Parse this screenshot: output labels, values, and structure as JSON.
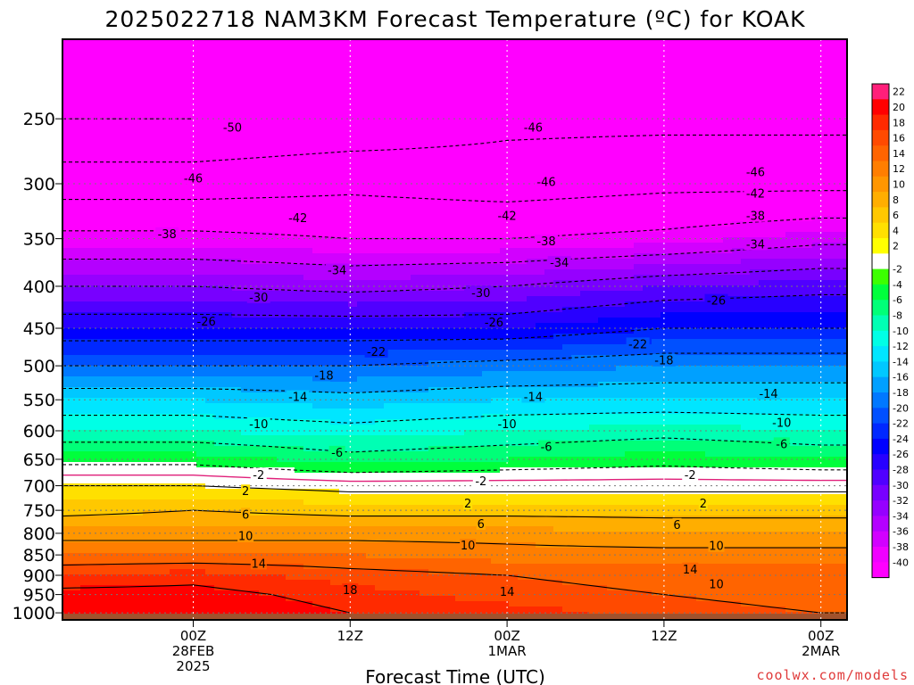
{
  "chart_data": {
    "type": "heatmap",
    "title": "2025022718 NAM3KM Forecast Temperature (ºC) for KOAK",
    "xlabel": "Forecast Time (UTC)",
    "ylabel": "",
    "credit": "coolwx.com/models",
    "x_unit": "forecast hours from 28FEB 00Z",
    "xlim": [
      -10,
      50
    ],
    "x_ticks": [
      {
        "hour": 0,
        "lines": [
          "00Z",
          "28FEB",
          "2025"
        ]
      },
      {
        "hour": 12,
        "lines": [
          "12Z"
        ]
      },
      {
        "hour": 24,
        "lines": [
          "00Z",
          "1MAR"
        ]
      },
      {
        "hour": 36,
        "lines": [
          "12Z"
        ]
      },
      {
        "hour": 48,
        "lines": [
          "00Z",
          "2MAR"
        ]
      }
    ],
    "y_axis": "pressure (hPa), log scale, inverted",
    "ylim": [
      1020,
      200
    ],
    "y_ticks": [
      250,
      300,
      350,
      400,
      450,
      500,
      550,
      600,
      650,
      700,
      750,
      800,
      850,
      900,
      950,
      1000
    ],
    "grid": true,
    "colorbar_labels": [
      22,
      20,
      18,
      16,
      14,
      12,
      10,
      8,
      6,
      4,
      2,
      -2,
      -4,
      -6,
      -8,
      -10,
      -12,
      -14,
      -16,
      -18,
      -20,
      -22,
      -24,
      -26,
      -28,
      -30,
      -32,
      -34,
      -36,
      -38,
      -40
    ],
    "colors": {
      "22": "#ff1f7a",
      "20": "#ff0000",
      "18": "#ff2a00",
      "16": "#ff4a00",
      "14": "#ff6400",
      "12": "#ff7e00",
      "10": "#ff9600",
      "8": "#ffae00",
      "6": "#ffc800",
      "4": "#ffe000",
      "2": "#ffff00",
      "0": "#ffffff",
      "-2": "#3cff00",
      "-4": "#00ff3c",
      "-6": "#00ff78",
      "-8": "#00ffb4",
      "-10": "#00ffe6",
      "-12": "#00e6ff",
      "-14": "#00c8ff",
      "-16": "#00a0ff",
      "-18": "#0078ff",
      "-20": "#0050ff",
      "-22": "#0028ff",
      "-24": "#0000ff",
      "-26": "#2800ff",
      "-28": "#5000ff",
      "-30": "#7800ff",
      "-32": "#9600ff",
      "-34": "#b400ff",
      "-36": "#d200ff",
      "-38": "#f000ff",
      "-40": "#ff00ff"
    },
    "ground_color": "#a0522d",
    "freezing_line_color": "#e0207a",
    "profile_hours": [
      -10,
      0,
      12,
      24,
      36,
      48,
      50
    ],
    "profiles": [
      {
        "p": 250,
        "t": [
          -50,
          -50,
          -49,
          -47,
          -47,
          -47,
          -47
        ]
      },
      {
        "p": 300,
        "t": [
          -44,
          -44,
          -43,
          -44,
          -43,
          -43,
          -43
        ]
      },
      {
        "p": 350,
        "t": [
          -37,
          -37,
          -38,
          -38,
          -37,
          -35,
          -35
        ]
      },
      {
        "p": 400,
        "t": [
          -30,
          -30,
          -31,
          -30,
          -28,
          -27,
          -27
        ]
      },
      {
        "p": 450,
        "t": [
          -24,
          -24,
          -24,
          -24,
          -22,
          -22,
          -22
        ]
      },
      {
        "p": 500,
        "t": [
          -18,
          -18,
          -18,
          -17,
          -16,
          -16,
          -16
        ]
      },
      {
        "p": 550,
        "t": [
          -12,
          -12,
          -13,
          -12,
          -12,
          -12,
          -12
        ]
      },
      {
        "p": 600,
        "t": [
          -8,
          -8,
          -9,
          -8,
          -7,
          -8,
          -8
        ]
      },
      {
        "p": 650,
        "t": [
          -3,
          -3,
          -5,
          -4,
          -3,
          -4,
          -4
        ]
      },
      {
        "p": 700,
        "t": [
          2,
          2,
          1,
          1,
          1,
          1,
          1
        ]
      },
      {
        "p": 750,
        "t": [
          5,
          6,
          5,
          5,
          5,
          5,
          5
        ]
      },
      {
        "p": 800,
        "t": [
          9,
          9,
          9,
          9,
          8,
          8,
          8
        ]
      },
      {
        "p": 850,
        "t": [
          12,
          12,
          12,
          11,
          11,
          11,
          11
        ]
      },
      {
        "p": 900,
        "t": [
          16,
          17,
          15,
          14,
          13,
          13,
          13
        ]
      },
      {
        "p": 950,
        "t": [
          19,
          19,
          17,
          15,
          14,
          13,
          13
        ]
      },
      {
        "p": 1000,
        "t": [
          20,
          20,
          18,
          17,
          15,
          14,
          14
        ]
      }
    ],
    "contour_labels": [
      {
        "hour": 3,
        "p": 256,
        "text": "-50"
      },
      {
        "hour": 26,
        "p": 256,
        "text": "-46"
      },
      {
        "hour": 0,
        "p": 295,
        "text": "-46"
      },
      {
        "hour": 27,
        "p": 298,
        "text": "-46"
      },
      {
        "hour": 43,
        "p": 290,
        "text": "-46"
      },
      {
        "hour": 43,
        "p": 308,
        "text": "-42"
      },
      {
        "hour": 8,
        "p": 330,
        "text": "-42"
      },
      {
        "hour": 24,
        "p": 328,
        "text": "-42"
      },
      {
        "hour": 43,
        "p": 328,
        "text": "-38"
      },
      {
        "hour": -2,
        "p": 345,
        "text": "-38"
      },
      {
        "hour": 27,
        "p": 352,
        "text": "-38"
      },
      {
        "hour": 43,
        "p": 355,
        "text": "-34"
      },
      {
        "hour": 11,
        "p": 382,
        "text": "-34"
      },
      {
        "hour": 28,
        "p": 374,
        "text": "-34"
      },
      {
        "hour": 5,
        "p": 412,
        "text": "-30"
      },
      {
        "hour": 22,
        "p": 407,
        "text": "-30"
      },
      {
        "hour": 40,
        "p": 416,
        "text": "-26"
      },
      {
        "hour": 1,
        "p": 441,
        "text": "-26"
      },
      {
        "hour": 23,
        "p": 442,
        "text": "-26"
      },
      {
        "hour": 34,
        "p": 470,
        "text": "-22"
      },
      {
        "hour": 14,
        "p": 480,
        "text": "-22"
      },
      {
        "hour": 10,
        "p": 513,
        "text": "-18"
      },
      {
        "hour": 36,
        "p": 492,
        "text": "-18"
      },
      {
        "hour": 8,
        "p": 545,
        "text": "-14"
      },
      {
        "hour": 26,
        "p": 545,
        "text": "-14"
      },
      {
        "hour": 44,
        "p": 540,
        "text": "-14"
      },
      {
        "hour": 5,
        "p": 588,
        "text": "-10"
      },
      {
        "hour": 24,
        "p": 588,
        "text": "-10"
      },
      {
        "hour": 45,
        "p": 586,
        "text": "-10"
      },
      {
        "hour": 11,
        "p": 637,
        "text": "-6"
      },
      {
        "hour": 27,
        "p": 627,
        "text": "-6"
      },
      {
        "hour": 45,
        "p": 622,
        "text": "-6"
      },
      {
        "hour": 5,
        "p": 678,
        "text": "-2"
      },
      {
        "hour": 22,
        "p": 690,
        "text": "-2"
      },
      {
        "hour": 38,
        "p": 678,
        "text": "-2"
      },
      {
        "hour": 4,
        "p": 710,
        "text": "2"
      },
      {
        "hour": 21,
        "p": 735,
        "text": "2"
      },
      {
        "hour": 39,
        "p": 735,
        "text": "2"
      },
      {
        "hour": 4,
        "p": 758,
        "text": "6"
      },
      {
        "hour": 22,
        "p": 778,
        "text": "6"
      },
      {
        "hour": 37,
        "p": 780,
        "text": "6"
      },
      {
        "hour": 4,
        "p": 805,
        "text": "10"
      },
      {
        "hour": 21,
        "p": 827,
        "text": "10"
      },
      {
        "hour": 40,
        "p": 828,
        "text": "10"
      },
      {
        "hour": 5,
        "p": 870,
        "text": "14"
      },
      {
        "hour": 38,
        "p": 884,
        "text": "14"
      },
      {
        "hour": 24,
        "p": 942,
        "text": "14"
      },
      {
        "hour": 40,
        "p": 922,
        "text": "10"
      },
      {
        "hour": 12,
        "p": 937,
        "text": "18"
      }
    ]
  }
}
